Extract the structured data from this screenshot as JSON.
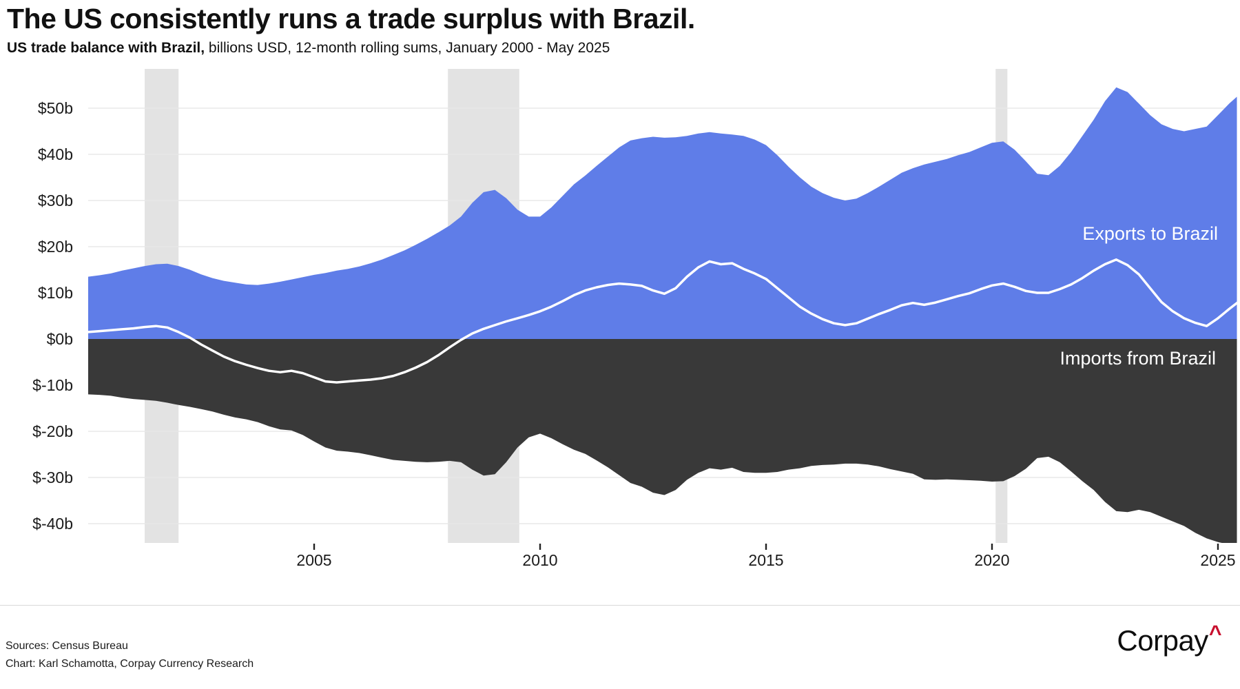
{
  "header": {
    "title": "The US consistently runs a trade surplus with Brazil.",
    "subtitle_bold": "US trade balance with Brazil,",
    "subtitle_rest": " billions USD, 12-month rolling sums, January 2000 - May 2025"
  },
  "chart_data": {
    "type": "area",
    "title": "The US consistently runs a trade surplus with Brazil.",
    "subtitle": "US trade balance with Brazil, billions USD, 12-month rolling sums, January 2000 - May 2025",
    "unit": "billions USD",
    "x_start": 2000.0,
    "x_step": 0.25,
    "x_last": 2025.42,
    "xlim": [
      2000.0,
      2025.42
    ],
    "ylim": [
      -44.5,
      58.5
    ],
    "grid": true,
    "series": [
      {
        "name": "Exports to Brazil",
        "color": "#5F7DE8",
        "values": [
          13.5,
          13.8,
          14.2,
          14.8,
          15.3,
          15.8,
          16.2,
          16.3,
          15.8,
          15.0,
          14.0,
          13.2,
          12.6,
          12.2,
          11.8,
          11.7,
          12.0,
          12.4,
          12.9,
          13.4,
          13.9,
          14.3,
          14.8,
          15.2,
          15.7,
          16.4,
          17.2,
          18.2,
          19.2,
          20.4,
          21.7,
          23.1,
          24.6,
          26.5,
          29.5,
          31.8,
          32.3,
          30.5,
          28.0,
          26.5,
          26.5,
          28.5,
          31.0,
          33.5,
          35.4,
          37.5,
          39.5,
          41.5,
          43.0,
          43.5,
          43.8,
          43.6,
          43.7,
          44.0,
          44.5,
          44.8,
          44.5,
          44.3,
          44.0,
          43.2,
          42.0,
          39.8,
          37.3,
          35.0,
          33.0,
          31.6,
          30.6,
          30.0,
          30.4,
          31.6,
          33.0,
          34.5,
          36.0,
          37.0,
          37.8,
          38.4,
          39.0,
          39.8,
          40.5,
          41.5,
          42.5,
          42.8,
          41.0,
          38.5,
          35.8,
          35.5,
          37.5,
          40.5,
          44.0,
          47.5,
          51.5,
          54.5,
          53.5,
          51.0,
          48.5,
          46.5,
          45.5,
          45.0,
          45.5,
          46.0,
          48.5,
          51.0,
          52.5
        ]
      },
      {
        "name": "Imports from Brazil",
        "color": "#393939",
        "values": [
          -12.0,
          -12.1,
          -12.3,
          -12.7,
          -13.0,
          -13.2,
          -13.4,
          -13.8,
          -14.3,
          -14.7,
          -15.2,
          -15.7,
          -16.4,
          -17.0,
          -17.4,
          -18.0,
          -18.9,
          -19.6,
          -19.8,
          -20.8,
          -22.2,
          -23.5,
          -24.2,
          -24.4,
          -24.7,
          -25.2,
          -25.7,
          -26.2,
          -26.4,
          -26.6,
          -26.7,
          -26.6,
          -26.4,
          -26.7,
          -28.3,
          -29.6,
          -29.3,
          -26.7,
          -23.5,
          -21.3,
          -20.5,
          -21.5,
          -22.8,
          -24.0,
          -24.9,
          -26.3,
          -27.8,
          -29.5,
          -31.2,
          -32.0,
          -33.3,
          -33.8,
          -32.7,
          -30.5,
          -29.0,
          -28.0,
          -28.3,
          -27.9,
          -28.8,
          -29.0,
          -29.0,
          -28.8,
          -28.3,
          -28.0,
          -27.5,
          -27.3,
          -27.2,
          -27.0,
          -27.0,
          -27.2,
          -27.6,
          -28.2,
          -28.7,
          -29.2,
          -30.4,
          -30.5,
          -30.4,
          -30.5,
          -30.6,
          -30.7,
          -30.9,
          -30.8,
          -29.7,
          -28.1,
          -25.8,
          -25.5,
          -26.7,
          -28.7,
          -30.8,
          -32.7,
          -35.3,
          -37.3,
          -37.5,
          -37.0,
          -37.5,
          -38.5,
          -39.5,
          -40.5,
          -42.0,
          -43.2,
          -44.0,
          -44.5,
          -44.7
        ]
      },
      {
        "name": "Trade balance",
        "color": "#FFFFFF",
        "values": [
          1.5,
          1.7,
          1.9,
          2.1,
          2.3,
          2.6,
          2.8,
          2.5,
          1.5,
          0.3,
          -1.2,
          -2.5,
          -3.8,
          -4.8,
          -5.6,
          -6.3,
          -6.9,
          -7.2,
          -6.9,
          -7.4,
          -8.3,
          -9.2,
          -9.4,
          -9.2,
          -9.0,
          -8.8,
          -8.5,
          -8.0,
          -7.2,
          -6.2,
          -5.0,
          -3.5,
          -1.8,
          -0.2,
          1.2,
          2.2,
          3.0,
          3.8,
          4.5,
          5.2,
          6.0,
          7.0,
          8.2,
          9.5,
          10.5,
          11.2,
          11.7,
          12.0,
          11.8,
          11.5,
          10.5,
          9.8,
          11.0,
          13.5,
          15.5,
          16.8,
          16.2,
          16.4,
          15.2,
          14.2,
          13.0,
          11.0,
          9.0,
          7.0,
          5.5,
          4.3,
          3.4,
          3.0,
          3.4,
          4.4,
          5.4,
          6.3,
          7.3,
          7.8,
          7.4,
          7.9,
          8.6,
          9.3,
          9.9,
          10.8,
          11.6,
          12.0,
          11.3,
          10.4,
          10.0,
          10.0,
          10.8,
          11.8,
          13.2,
          14.8,
          16.2,
          17.2,
          16.0,
          14.0,
          11.0,
          8.0,
          6.0,
          4.5,
          3.5,
          2.8,
          4.5,
          6.5,
          7.8
        ]
      }
    ],
    "y_ticks": [
      {
        "label": "$50b",
        "value": 50
      },
      {
        "label": "$40b",
        "value": 40
      },
      {
        "label": "$30b",
        "value": 30
      },
      {
        "label": "$20b",
        "value": 20
      },
      {
        "label": "$10b",
        "value": 10
      },
      {
        "label": "$0b",
        "value": 0
      },
      {
        "label": "$-10b",
        "value": -10
      },
      {
        "label": "$-20b",
        "value": -20
      },
      {
        "label": "$-30b",
        "value": -30
      },
      {
        "label": "$-40b",
        "value": -40
      }
    ],
    "x_ticks": [
      {
        "label": "2005",
        "value": 2005
      },
      {
        "label": "2010",
        "value": 2010
      },
      {
        "label": "2015",
        "value": 2015
      },
      {
        "label": "2020",
        "value": 2020
      },
      {
        "label": "2025",
        "value": 2025
      }
    ],
    "recession_bands": [
      {
        "start": 2001.25,
        "end": 2002.0
      },
      {
        "start": 2007.96,
        "end": 2009.54
      },
      {
        "start": 2020.08,
        "end": 2020.34
      }
    ],
    "colors": {
      "exports_area": "#5F7DE8",
      "imports_area": "#393939",
      "balance_line": "#FFFFFF",
      "recession_band": "#E3E3E3",
      "gridline": "#E8E8E8"
    }
  },
  "footer": {
    "sources": "Sources: Census Bureau",
    "credit": "Chart: Karl Schamotta, Corpay Currency Research",
    "logo_text": "Corpay",
    "logo_caret": "^"
  }
}
